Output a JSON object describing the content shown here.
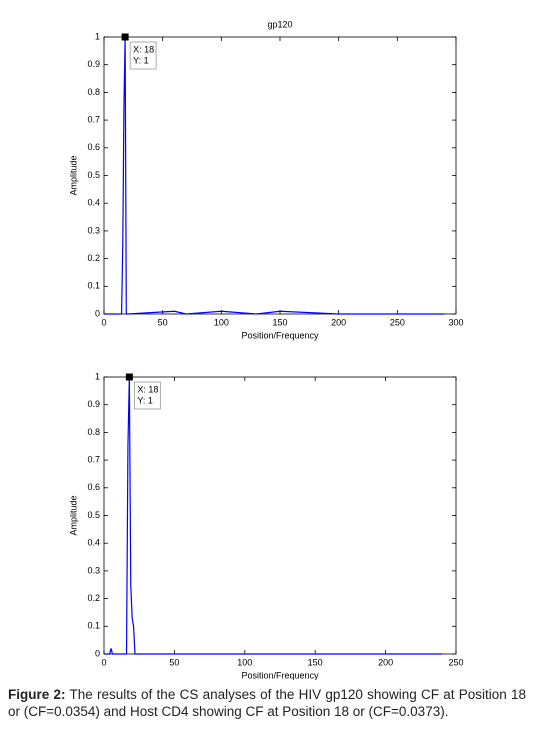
{
  "chart_data": [
    {
      "type": "line",
      "title": "gp120",
      "xlabel": "Position/Frequency",
      "ylabel": "Amplitude",
      "x": [
        0,
        15,
        16,
        17,
        18,
        19,
        20,
        60,
        70,
        100,
        130,
        150,
        200,
        290
      ],
      "values": [
        0,
        0,
        0.25,
        0.75,
        1,
        0,
        0,
        0.01,
        0,
        0.01,
        0,
        0.01,
        0,
        0
      ],
      "color": "#0000ff",
      "xlim": [
        0,
        300
      ],
      "xticks": [
        0,
        50,
        100,
        150,
        200,
        250,
        300
      ],
      "ylim": [
        0,
        1
      ],
      "yticks": [
        0,
        0.1,
        0.2,
        0.3,
        0.4,
        0.5,
        0.6,
        0.7,
        0.8,
        0.9,
        1
      ],
      "annotation": {
        "x": 18,
        "y": 1,
        "label_x": "X: 18",
        "label_y": "Y: 1"
      }
    },
    {
      "type": "line",
      "xlabel": "Position/Frequency",
      "ylabel": "Amplitude",
      "x": [
        0,
        4,
        5,
        6,
        16,
        17,
        18,
        19,
        20,
        21,
        22,
        240
      ],
      "values": [
        0,
        0,
        0.02,
        0,
        0,
        0.75,
        1,
        0.25,
        0.13,
        0.1,
        0,
        0
      ],
      "color": "#0000ff",
      "xlim": [
        0,
        250
      ],
      "xticks": [
        0,
        50,
        100,
        150,
        200,
        250
      ],
      "ylim": [
        0,
        1
      ],
      "yticks": [
        0,
        0.1,
        0.2,
        0.3,
        0.4,
        0.5,
        0.6,
        0.7,
        0.8,
        0.9,
        1
      ],
      "annotation": {
        "x": 18,
        "y": 1,
        "label_x": "X: 18",
        "label_y": "Y: 1"
      }
    }
  ],
  "caption": {
    "label": "Figure 2:",
    "text": "The results of the CS analyses of the HIV gp120 showing CF at Position 18 or (CF=0.0354) and Host CD4 showing CF at Position 18 or (CF=0.0373)."
  }
}
